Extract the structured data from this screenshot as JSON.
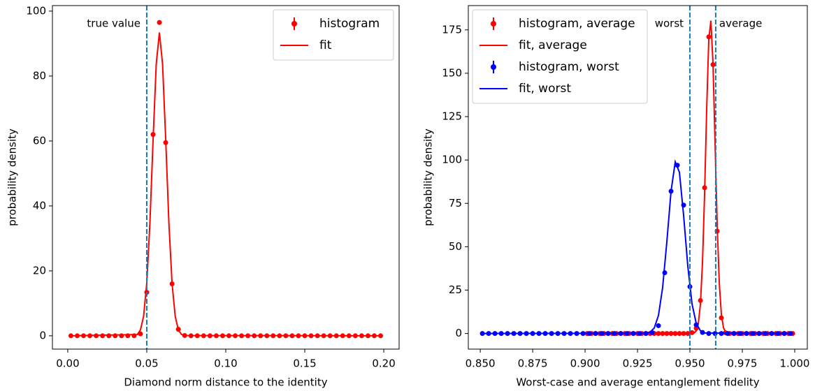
{
  "chart_data": [
    {
      "type": "line",
      "xlabel": "Diamond norm distance to the identity",
      "ylabel": "probability density",
      "xlim": [
        -0.0097,
        0.2097
      ],
      "ylim": [
        -4.1,
        101.7
      ],
      "xticks": [
        {
          "value": 0,
          "label": "0.00"
        },
        {
          "value": 0.05,
          "label": "0.05"
        },
        {
          "value": 0.1,
          "label": "0.10"
        },
        {
          "value": 0.15,
          "label": "0.15"
        },
        {
          "value": 0.2,
          "label": "0.20"
        }
      ],
      "yticks": [
        0,
        20,
        40,
        60,
        80,
        100
      ],
      "legend": "upper right",
      "vlines": [
        {
          "x": 0.05,
          "label": "true value",
          "side": "left",
          "color": "#1f77b4"
        }
      ],
      "series": [
        {
          "name": "histogram",
          "color": "#ff0000",
          "style": "points",
          "x": [
            0.002,
            0.006,
            0.01,
            0.014,
            0.018,
            0.022,
            0.026,
            0.03,
            0.034,
            0.038,
            0.042,
            0.046,
            0.05,
            0.054,
            0.058,
            0.062,
            0.066,
            0.07,
            0.074,
            0.078,
            0.082,
            0.086,
            0.09,
            0.094,
            0.098,
            0.102,
            0.106,
            0.11,
            0.114,
            0.118,
            0.122,
            0.126,
            0.13,
            0.134,
            0.138,
            0.142,
            0.146,
            0.15,
            0.154,
            0.158,
            0.162,
            0.166,
            0.17,
            0.174,
            0.178,
            0.182,
            0.186,
            0.19,
            0.194,
            0.198
          ],
          "values": [
            0,
            0,
            0,
            0,
            0,
            0,
            0,
            0,
            0,
            0,
            0,
            0.6,
            13.4,
            62,
            96.5,
            59.5,
            16,
            2,
            0.1,
            0,
            0,
            0,
            0,
            0,
            0,
            0,
            0,
            0,
            0,
            0,
            0,
            0,
            0,
            0,
            0,
            0,
            0,
            0,
            0,
            0,
            0,
            0,
            0,
            0,
            0,
            0,
            0,
            0,
            0,
            0
          ]
        },
        {
          "name": "fit",
          "color": "#ff0000",
          "style": "line",
          "x": [
            0.002,
            0.044,
            0.046,
            0.048,
            0.05,
            0.052,
            0.054,
            0.056,
            0.058,
            0.06,
            0.062,
            0.064,
            0.066,
            0.068,
            0.07,
            0.072,
            0.074,
            0.198
          ],
          "values": [
            0,
            0.4,
            1.8,
            6.0,
            16.2,
            34.8,
            60.3,
            83.7,
            93.4,
            83.7,
            60.3,
            34.8,
            16.2,
            6.0,
            1.8,
            0.4,
            0.1,
            0
          ]
        }
      ]
    },
    {
      "type": "line",
      "xlabel": "Worst-case and average entanglement fidelity",
      "ylabel": "probability density",
      "xlim": [
        0.8443,
        1.006
      ],
      "ylim": [
        -9,
        189
      ],
      "xticks": [
        {
          "value": 0.85,
          "label": "0.850"
        },
        {
          "value": 0.875,
          "label": "0.875"
        },
        {
          "value": 0.9,
          "label": "0.900"
        },
        {
          "value": 0.925,
          "label": "0.925"
        },
        {
          "value": 0.95,
          "label": "0.950"
        },
        {
          "value": 0.975,
          "label": "0.975"
        },
        {
          "value": 1,
          "label": "1.000"
        }
      ],
      "yticks": [
        0,
        25,
        50,
        75,
        100,
        125,
        150,
        175
      ],
      "legend": "upper left",
      "vlines": [
        {
          "x": 0.95,
          "label": "worst",
          "side": "left",
          "color": "#1f77b4"
        },
        {
          "x": 0.9623,
          "label": "average",
          "side": "right",
          "color": "#1f77b4"
        }
      ],
      "series": [
        {
          "name": "histogram, average",
          "color": "#ff0000",
          "style": "points",
          "x": [
            0.901,
            0.903,
            0.905,
            0.907,
            0.909,
            0.911,
            0.913,
            0.915,
            0.917,
            0.919,
            0.921,
            0.923,
            0.925,
            0.927,
            0.929,
            0.931,
            0.933,
            0.935,
            0.937,
            0.939,
            0.941,
            0.943,
            0.945,
            0.947,
            0.949,
            0.951,
            0.953,
            0.955,
            0.957,
            0.959,
            0.961,
            0.963,
            0.965,
            0.967,
            0.969,
            0.971,
            0.973,
            0.975,
            0.977,
            0.979,
            0.981,
            0.983,
            0.985,
            0.987,
            0.989,
            0.991,
            0.993,
            0.995,
            0.997,
            0.999
          ],
          "values": [
            0,
            0,
            0,
            0,
            0,
            0,
            0,
            0,
            0,
            0,
            0,
            0,
            0,
            0,
            0,
            0,
            0,
            0,
            0,
            0,
            0,
            0,
            0,
            0,
            0,
            0.5,
            3,
            19,
            84,
            171,
            155,
            59,
            9,
            0.4,
            0,
            0,
            0,
            0,
            0,
            0,
            0,
            0,
            0,
            0,
            0,
            0,
            0,
            0,
            0,
            0
          ]
        },
        {
          "name": "fit, average",
          "color": "#ff0000",
          "style": "line",
          "x": [
            0.901,
            0.952,
            0.953,
            0.954,
            0.955,
            0.956,
            0.957,
            0.958,
            0.959,
            0.96,
            0.961,
            0.962,
            0.963,
            0.964,
            0.965,
            0.966,
            0.967,
            0.968,
            0.999
          ],
          "values": [
            0,
            0.3,
            1.5,
            5.6,
            16.8,
            40.8,
            80.5,
            129.4,
            169.5,
            180.3,
            156,
            109.8,
            62.8,
            29.3,
            11.1,
            3.4,
            0.8,
            0.2,
            0
          ]
        },
        {
          "name": "histogram, worst",
          "color": "#0000ff",
          "style": "points",
          "x": [
            0.851,
            0.854,
            0.857,
            0.86,
            0.863,
            0.866,
            0.869,
            0.872,
            0.875,
            0.878,
            0.881,
            0.884,
            0.887,
            0.89,
            0.893,
            0.896,
            0.899,
            0.902,
            0.905,
            0.908,
            0.911,
            0.914,
            0.917,
            0.92,
            0.923,
            0.926,
            0.929,
            0.932,
            0.935,
            0.938,
            0.941,
            0.944,
            0.947,
            0.95,
            0.953,
            0.956,
            0.959,
            0.962,
            0.965,
            0.968,
            0.971,
            0.974,
            0.977,
            0.98,
            0.983,
            0.986,
            0.989,
            0.992,
            0.995,
            0.998
          ],
          "values": [
            0,
            0,
            0,
            0,
            0,
            0,
            0,
            0,
            0,
            0,
            0,
            0,
            0,
            0,
            0,
            0,
            0,
            0,
            0,
            0,
            0,
            0,
            0,
            0,
            0,
            0,
            0,
            0.5,
            4.5,
            35,
            82,
            97,
            74,
            27,
            5,
            0.6,
            0,
            0,
            0,
            0,
            0,
            0,
            0,
            0,
            0,
            0,
            0,
            0,
            0,
            0
          ]
        },
        {
          "name": "fit, worst",
          "color": "#0000ff",
          "style": "line",
          "x": [
            0.851,
            0.929,
            0.931,
            0.933,
            0.935,
            0.937,
            0.939,
            0.941,
            0.943,
            0.945,
            0.947,
            0.949,
            0.951,
            0.953,
            0.955,
            0.957,
            0.998
          ],
          "values": [
            0,
            0.1,
            0.8,
            3.2,
            10.4,
            26.6,
            52.9,
            82,
            98.9,
            92.9,
            68,
            38.8,
            17.1,
            5.9,
            1.6,
            0.3,
            0
          ]
        }
      ]
    }
  ]
}
